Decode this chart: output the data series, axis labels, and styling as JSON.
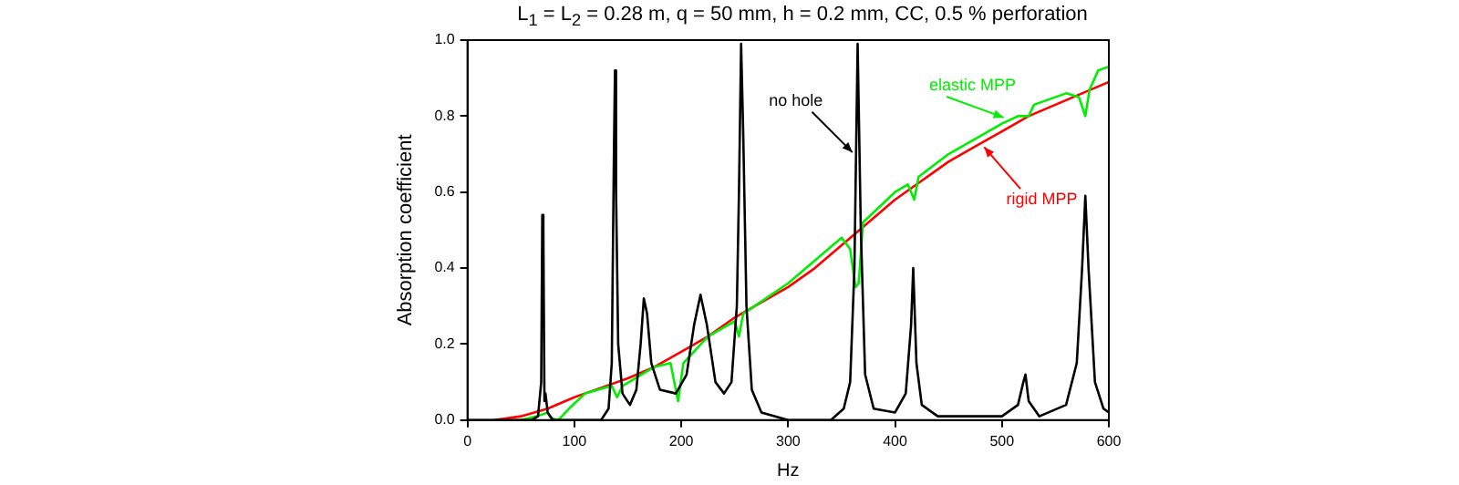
{
  "chart_data": {
    "type": "line",
    "title": "L$_{1}$ = L$_{2}$ = 0.28 m, q = 50 mm, h = 0.2 mm, CC, 0.5 % perforation",
    "xlabel": "Hz",
    "ylabel": "Absorption coefficient",
    "xlim": [
      0,
      600
    ],
    "ylim": [
      0,
      1
    ],
    "xticks": [
      0,
      100,
      200,
      300,
      400,
      500,
      600
    ],
    "yticks": [
      {
        "value": 0,
        "label": "0.0"
      },
      {
        "value": 0.2,
        "label": "0.2"
      },
      {
        "value": 0.4,
        "label": "0.4"
      },
      {
        "value": 0.6,
        "label": "0.6"
      },
      {
        "value": 0.8,
        "label": "0.8"
      },
      {
        "value": 1,
        "label": "1.0"
      }
    ],
    "grid": false,
    "legend": false,
    "marker": "none",
    "line_style": "solid",
    "series": [
      {
        "name": "no hole",
        "color": "#000000",
        "x": [
          0,
          60,
          66,
          69,
          70,
          71,
          72,
          73,
          75,
          80,
          125,
          132,
          135,
          137,
          138,
          139,
          141,
          145,
          152,
          158,
          162,
          165,
          168,
          172,
          180,
          195,
          205,
          212,
          218,
          224,
          232,
          240,
          247,
          252,
          254,
          256,
          258,
          261,
          266,
          275,
          300,
          340,
          352,
          358,
          362,
          365,
          368,
          372,
          380,
          400,
          410,
          415,
          417,
          420,
          425,
          440,
          500,
          515,
          520,
          522,
          525,
          535,
          560,
          570,
          575,
          578,
          581,
          587,
          595,
          600
        ],
        "values": [
          0,
          0,
          0.01,
          0.1,
          0.54,
          0.5,
          0.05,
          0.07,
          0.02,
          0,
          0,
          0.03,
          0.15,
          0.7,
          0.92,
          0.6,
          0.2,
          0.07,
          0.04,
          0.08,
          0.2,
          0.32,
          0.28,
          0.15,
          0.08,
          0.07,
          0.12,
          0.25,
          0.33,
          0.25,
          0.1,
          0.07,
          0.1,
          0.3,
          0.6,
          0.99,
          0.75,
          0.3,
          0.08,
          0.02,
          0,
          0,
          0.03,
          0.1,
          0.4,
          0.99,
          0.5,
          0.12,
          0.03,
          0.02,
          0.07,
          0.25,
          0.4,
          0.15,
          0.04,
          0.01,
          0.01,
          0.04,
          0.1,
          0.12,
          0.05,
          0.01,
          0.04,
          0.15,
          0.4,
          0.59,
          0.4,
          0.1,
          0.03,
          0.02
        ]
      },
      {
        "name": "elastic MPP",
        "color": "#00ee00",
        "x": [
          50,
          65,
          75,
          78,
          85,
          95,
          110,
          135,
          140,
          145,
          175,
          190,
          197,
          202,
          225,
          250,
          254,
          258,
          300,
          350,
          358,
          363,
          366,
          370,
          400,
          412,
          418,
          422,
          450,
          500,
          515,
          525,
          530,
          560,
          572,
          578,
          582,
          590,
          600
        ],
        "values": [
          0,
          0.01,
          0.02,
          0.005,
          0,
          0.03,
          0.07,
          0.09,
          0.06,
          0.09,
          0.14,
          0.15,
          0.05,
          0.15,
          0.22,
          0.26,
          0.22,
          0.28,
          0.36,
          0.48,
          0.45,
          0.35,
          0.36,
          0.52,
          0.6,
          0.62,
          0.58,
          0.64,
          0.7,
          0.78,
          0.8,
          0.8,
          0.83,
          0.86,
          0.85,
          0.8,
          0.87,
          0.92,
          0.93
        ]
      },
      {
        "name": "rigid MPP",
        "color": "#ff0000",
        "x": [
          25,
          50,
          75,
          100,
          125,
          150,
          175,
          200,
          225,
          250,
          275,
          300,
          325,
          350,
          375,
          400,
          425,
          450,
          475,
          500,
          525,
          550,
          575,
          600
        ],
        "values": [
          0,
          0.01,
          0.03,
          0.06,
          0.085,
          0.11,
          0.14,
          0.18,
          0.22,
          0.27,
          0.31,
          0.35,
          0.4,
          0.46,
          0.52,
          0.58,
          0.63,
          0.68,
          0.72,
          0.76,
          0.8,
          0.83,
          0.86,
          0.89
        ]
      }
    ]
  }
}
